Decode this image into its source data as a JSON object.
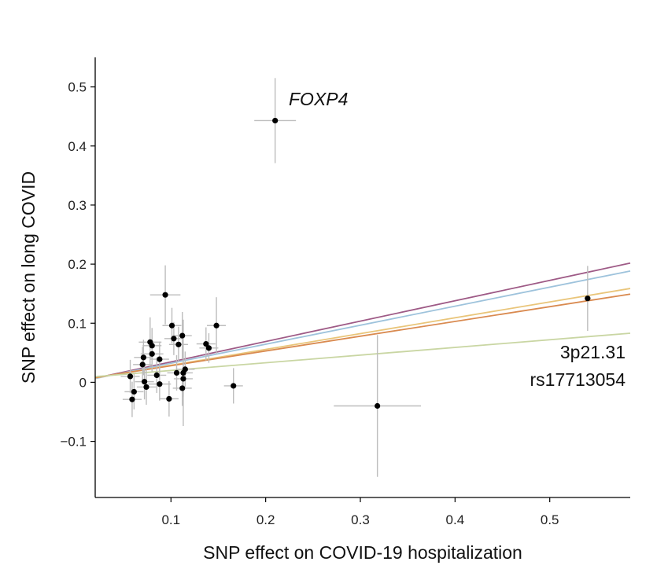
{
  "chart_data": {
    "type": "scatter",
    "title": "",
    "xlabel": "SNP effect on COVID-19 hospitalization",
    "ylabel": "SNP effect on long COVID",
    "xlim": [
      0.02,
      0.585
    ],
    "ylim": [
      -0.195,
      0.55
    ],
    "xticks": [
      0.1,
      0.2,
      0.3,
      0.4,
      0.5
    ],
    "xtick_labels": [
      "0.1",
      "0.2",
      "0.3",
      "0.4",
      "0.5"
    ],
    "yticks": [
      -0.1,
      0,
      0.1,
      0.2,
      0.3,
      0.4,
      0.5
    ],
    "ytick_labels": [
      "−0.1",
      "0",
      "0.1",
      "0.2",
      "0.3",
      "0.4",
      "0.5"
    ],
    "grid": false,
    "points": [
      {
        "x": 0.21,
        "y": 0.443,
        "xerr": 0.022,
        "yerr": 0.072,
        "label": "FOXP4"
      },
      {
        "x": 0.54,
        "y": 0.142,
        "xerr": 0.003,
        "yerr": 0.055,
        "label": "3p21.31 rs17713054"
      },
      {
        "x": 0.318,
        "y": -0.04,
        "xerr": 0.046,
        "yerr": 0.12
      },
      {
        "x": 0.094,
        "y": 0.148,
        "xerr": 0.016,
        "yerr": 0.05
      },
      {
        "x": 0.101,
        "y": 0.096,
        "xerr": 0.01,
        "yerr": 0.03
      },
      {
        "x": 0.148,
        "y": 0.096,
        "xerr": 0.01,
        "yerr": 0.048
      },
      {
        "x": 0.112,
        "y": 0.079,
        "xerr": 0.01,
        "yerr": 0.04
      },
      {
        "x": 0.103,
        "y": 0.074,
        "xerr": 0.01,
        "yerr": 0.028
      },
      {
        "x": 0.078,
        "y": 0.068,
        "xerr": 0.012,
        "yerr": 0.042
      },
      {
        "x": 0.08,
        "y": 0.062,
        "xerr": 0.01,
        "yerr": 0.03
      },
      {
        "x": 0.108,
        "y": 0.064,
        "xerr": 0.01,
        "yerr": 0.03
      },
      {
        "x": 0.137,
        "y": 0.065,
        "xerr": 0.01,
        "yerr": 0.028
      },
      {
        "x": 0.14,
        "y": 0.058,
        "xerr": 0.01,
        "yerr": 0.025
      },
      {
        "x": 0.08,
        "y": 0.048,
        "xerr": 0.012,
        "yerr": 0.03
      },
      {
        "x": 0.071,
        "y": 0.042,
        "xerr": 0.01,
        "yerr": 0.03
      },
      {
        "x": 0.088,
        "y": 0.039,
        "xerr": 0.01,
        "yerr": 0.03
      },
      {
        "x": 0.07,
        "y": 0.03,
        "xerr": 0.01,
        "yerr": 0.03
      },
      {
        "x": 0.115,
        "y": 0.022,
        "xerr": 0.01,
        "yerr": 0.03
      },
      {
        "x": 0.106,
        "y": 0.016,
        "xerr": 0.01,
        "yerr": 0.03
      },
      {
        "x": 0.085,
        "y": 0.012,
        "xerr": 0.01,
        "yerr": 0.03
      },
      {
        "x": 0.057,
        "y": 0.01,
        "xerr": 0.01,
        "yerr": 0.028
      },
      {
        "x": 0.113,
        "y": 0.006,
        "xerr": 0.01,
        "yerr": 0.03
      },
      {
        "x": 0.072,
        "y": 0.001,
        "xerr": 0.01,
        "yerr": 0.03
      },
      {
        "x": 0.088,
        "y": -0.003,
        "xerr": 0.012,
        "yerr": 0.028
      },
      {
        "x": 0.074,
        "y": -0.008,
        "xerr": 0.01,
        "yerr": 0.03
      },
      {
        "x": 0.166,
        "y": -0.006,
        "xerr": 0.01,
        "yerr": 0.03
      },
      {
        "x": 0.112,
        "y": -0.01,
        "xerr": 0.01,
        "yerr": 0.03
      },
      {
        "x": 0.061,
        "y": -0.016,
        "xerr": 0.01,
        "yerr": 0.03
      },
      {
        "x": 0.098,
        "y": -0.028,
        "xerr": 0.01,
        "yerr": 0.03
      },
      {
        "x": 0.059,
        "y": -0.029,
        "xerr": 0.01,
        "yerr": 0.03
      },
      {
        "x": 0.113,
        "y": 0.016,
        "xerr": 0.01,
        "yerr": 0.09
      }
    ],
    "fit_lines": [
      {
        "name": "fit-purple",
        "color": "#9e5a86",
        "slope": 0.345,
        "intercept": 0.0
      },
      {
        "name": "fit-blue",
        "color": "#9ec3dc",
        "slope": 0.322,
        "intercept": 0.0
      },
      {
        "name": "fit-yellow",
        "color": "#e9c57a",
        "slope": 0.268,
        "intercept": 0.002
      },
      {
        "name": "fit-orange",
        "color": "#d98a50",
        "slope": 0.25,
        "intercept": 0.003
      },
      {
        "name": "fit-green",
        "color": "#c9d6a3",
        "slope": 0.13,
        "intercept": 0.007
      }
    ],
    "annotations": [
      {
        "text": "FOXP4",
        "italic": true,
        "anchor": "start"
      },
      {
        "text": "3p21.31",
        "italic": false,
        "anchor": "end"
      },
      {
        "text": "rs17713054",
        "italic": false,
        "anchor": "end"
      }
    ],
    "colors": {
      "axis": "#000000",
      "errorbar": "#bdbdbd",
      "point": "#000000"
    }
  }
}
